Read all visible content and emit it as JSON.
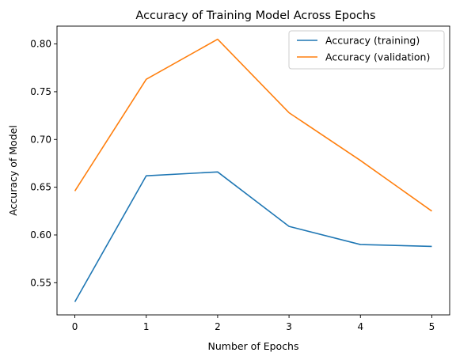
{
  "chart_data": {
    "type": "line",
    "title": "Accuracy of Training Model Across Epochs",
    "xlabel": "Number of Epochs",
    "ylabel": "Accuracy of Model",
    "x": [
      0,
      1,
      2,
      3,
      4,
      5
    ],
    "xticks": [
      "0",
      "1",
      "2",
      "3",
      "4",
      "5"
    ],
    "xlim": [
      -0.25,
      5.25
    ],
    "yticks": [
      "0.55",
      "0.60",
      "0.65",
      "0.70",
      "0.75",
      "0.80"
    ],
    "ylim": [
      0.5163,
      0.8187
    ],
    "grid": false,
    "legend": "top-right",
    "series": [
      {
        "name": "Accuracy (training)",
        "color": "#1f77b4",
        "values": [
          0.53,
          0.662,
          0.666,
          0.609,
          0.59,
          0.588
        ]
      },
      {
        "name": "Accuracy (validation)",
        "color": "#ff7f0e",
        "values": [
          0.646,
          0.763,
          0.805,
          0.728,
          0.678,
          0.625
        ]
      }
    ]
  }
}
